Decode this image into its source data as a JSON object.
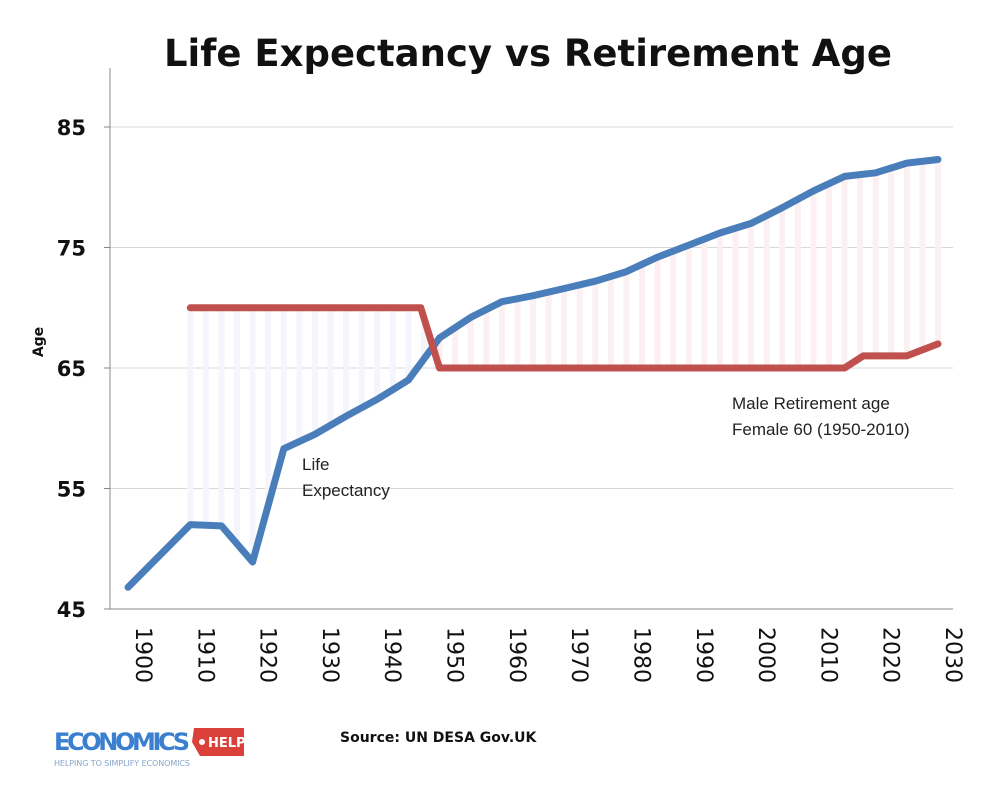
{
  "chart_data": {
    "type": "line",
    "title": "Life Expectancy vs Retirement Age",
    "ylabel": "Age",
    "xlabel": "",
    "ylim": [
      45,
      90
    ],
    "xlim": [
      1900,
      2030
    ],
    "yticks": [
      45,
      55,
      65,
      75,
      85
    ],
    "xticks": [
      1900,
      1910,
      1920,
      1930,
      1940,
      1950,
      1960,
      1970,
      1980,
      1990,
      2000,
      2010,
      2020,
      2030
    ],
    "grid": "horizontal",
    "series": [
      {
        "name": "Life Expectancy",
        "color": "#4a7ebb",
        "x": [
          1900,
          1910,
          1915,
          1920,
          1925,
          1930,
          1935,
          1940,
          1945,
          1950,
          1955,
          1960,
          1965,
          1970,
          1975,
          1980,
          1985,
          1990,
          1995,
          2000,
          2005,
          2010,
          2015,
          2020,
          2025,
          2030
        ],
        "values": [
          46.8,
          52.0,
          51.9,
          48.9,
          58.3,
          59.5,
          61.0,
          62.4,
          64.0,
          67.5,
          69.2,
          70.5,
          71.0,
          71.6,
          72.2,
          73.0,
          74.2,
          75.2,
          76.2,
          77.0,
          78.3,
          79.7,
          80.9,
          81.2,
          82.0,
          82.3
        ]
      },
      {
        "name": "Male Retirement age",
        "color": "#c0504d",
        "x": [
          1910,
          1915,
          1920,
          1925,
          1930,
          1935,
          1940,
          1945,
          1947,
          1950,
          1955,
          1960,
          1965,
          1970,
          1975,
          1980,
          1985,
          1990,
          1995,
          2000,
          2005,
          2010,
          2015,
          2018,
          2020,
          2025,
          2030
        ],
        "values": [
          70,
          70,
          70,
          70,
          70,
          70,
          70,
          70,
          70,
          65,
          65,
          65,
          65,
          65,
          65,
          65,
          65,
          65,
          65,
          65,
          65,
          65,
          65,
          66,
          66,
          66,
          67
        ]
      }
    ],
    "annotations": [
      {
        "lines": [
          "Life",
          "Expectancy"
        ],
        "series": "Life Expectancy"
      },
      {
        "lines": [
          "Male Retirement age",
          "Female 60 (1950-2010)"
        ],
        "series": "Male Retirement age"
      }
    ],
    "source": "Source: UN DESA Gov.UK"
  },
  "branding": {
    "logo_word": "ECONOMICS",
    "logo_badge": "HELP",
    "tagline": "HELPING TO SIMPLIFY ECONOMICS",
    "logo_blue": "#3a7fd0",
    "logo_red": "#d9413a"
  }
}
